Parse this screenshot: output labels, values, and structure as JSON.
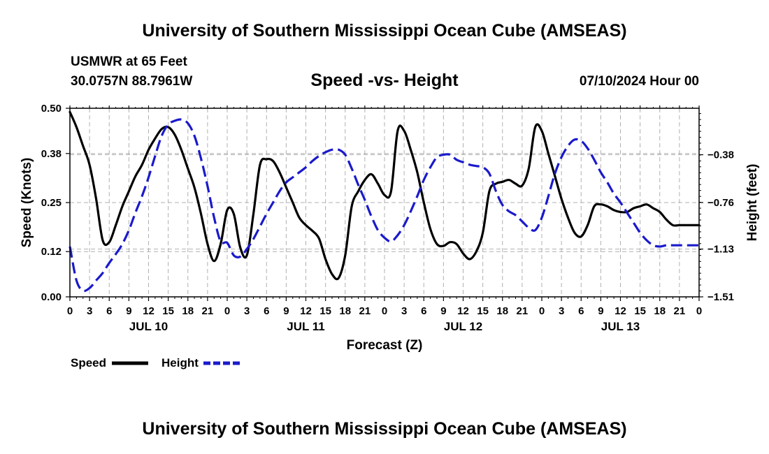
{
  "page": {
    "title": "University of Southern Mississippi Ocean Cube (AMSEAS)",
    "footer_title": "University of Southern Mississippi Ocean Cube (AMSEAS)",
    "station": "USMWR at 65 Feet",
    "coordinates": "30.0757N  88.7961W",
    "subtitle": "Speed -vs- Height",
    "datetime": "07/10/2024 Hour 00"
  },
  "legend": {
    "speed_label": "Speed",
    "height_label": "Height"
  },
  "colors": {
    "speed": "#000000",
    "height": "#1a1acc",
    "grid": "#b0b0b0"
  },
  "chart_data": {
    "type": "line",
    "xlabel": "Forecast (Z)",
    "ylabel": "Speed (Knots)",
    "y2label": "Height (feet)",
    "x_unit": "hours since 07/10/2024 00Z",
    "xlim": [
      0,
      96
    ],
    "ylim": [
      0.0,
      0.5
    ],
    "y2lim": [
      -1.51,
      -0.0106
    ],
    "x_ticks": [
      0,
      3,
      6,
      9,
      12,
      15,
      18,
      21,
      24,
      27,
      30,
      33,
      36,
      39,
      42,
      45,
      48,
      51,
      54,
      57,
      60,
      63,
      66,
      69,
      72,
      75,
      78,
      81,
      84,
      87,
      90,
      93,
      96
    ],
    "x_tick_labels": [
      "0",
      "3",
      "6",
      "9",
      "12",
      "15",
      "18",
      "21",
      "0",
      "3",
      "6",
      "9",
      "12",
      "15",
      "18",
      "21",
      "0",
      "3",
      "6",
      "9",
      "12",
      "15",
      "18",
      "21",
      "0",
      "3",
      "6",
      "9",
      "12",
      "15",
      "18",
      "21",
      "0"
    ],
    "day_labels": [
      {
        "x": 12,
        "label": "JUL 10"
      },
      {
        "x": 36,
        "label": "JUL 11"
      },
      {
        "x": 60,
        "label": "JUL 12"
      },
      {
        "x": 84,
        "label": "JUL 13"
      }
    ],
    "y_ticks": [
      0.0,
      0.12,
      0.25,
      0.38,
      0.5
    ],
    "y_tick_labels": [
      "0.00",
      "0.12",
      "0.25",
      "0.38",
      "0.50"
    ],
    "y2_ticks": [
      -1.51,
      -1.13,
      -0.76,
      -0.38
    ],
    "y2_tick_labels": [
      "−1.51",
      "−1.13",
      "−0.76",
      "−0.38"
    ],
    "grid": true,
    "legend_position": "bottom-left",
    "series": [
      {
        "name": "Speed",
        "axis": "left",
        "style": "solid",
        "x": [
          0,
          1,
          2,
          3,
          4,
          5,
          6,
          7,
          8,
          9,
          10,
          11,
          12,
          13,
          14,
          15,
          16,
          17,
          18,
          19,
          20,
          21,
          22,
          23,
          24,
          25,
          26,
          27,
          28,
          29,
          30,
          31,
          32,
          33,
          34,
          35,
          36,
          37,
          38,
          39,
          40,
          41,
          42,
          43,
          44,
          45,
          46,
          47,
          48,
          49,
          50,
          51,
          52,
          53,
          54,
          55,
          56,
          57,
          58,
          59,
          60,
          61,
          62,
          63,
          64,
          65,
          66,
          67,
          68,
          69,
          70,
          71,
          72,
          73,
          74,
          75,
          76,
          77,
          78,
          79,
          80,
          81,
          82,
          83,
          84,
          85,
          86,
          87,
          88,
          89,
          90,
          91,
          92,
          93,
          94,
          95,
          96
        ],
        "values": [
          0.49,
          0.45,
          0.4,
          0.35,
          0.26,
          0.15,
          0.145,
          0.19,
          0.24,
          0.28,
          0.32,
          0.35,
          0.39,
          0.42,
          0.445,
          0.45,
          0.43,
          0.39,
          0.34,
          0.29,
          0.22,
          0.14,
          0.095,
          0.14,
          0.23,
          0.22,
          0.13,
          0.11,
          0.22,
          0.35,
          0.365,
          0.36,
          0.33,
          0.29,
          0.25,
          0.21,
          0.19,
          0.175,
          0.155,
          0.1,
          0.06,
          0.05,
          0.11,
          0.24,
          0.28,
          0.31,
          0.325,
          0.3,
          0.27,
          0.28,
          0.44,
          0.44,
          0.39,
          0.33,
          0.25,
          0.18,
          0.14,
          0.135,
          0.145,
          0.14,
          0.115,
          0.1,
          0.12,
          0.17,
          0.28,
          0.3,
          0.305,
          0.31,
          0.3,
          0.295,
          0.34,
          0.45,
          0.44,
          0.38,
          0.32,
          0.26,
          0.21,
          0.17,
          0.16,
          0.19,
          0.24,
          0.245,
          0.24,
          0.23,
          0.225,
          0.225,
          0.235,
          0.24,
          0.245,
          0.235,
          0.225,
          0.205,
          0.19,
          0.19,
          0.19,
          0.19,
          0.19
        ]
      },
      {
        "name": "Height",
        "axis": "right",
        "style": "dashed",
        "x": [
          0,
          1,
          2,
          3,
          4,
          5,
          6,
          7,
          8,
          9,
          10,
          11,
          12,
          13,
          14,
          15,
          16,
          17,
          18,
          19,
          20,
          21,
          22,
          23,
          24,
          25,
          26,
          27,
          28,
          29,
          30,
          31,
          32,
          33,
          34,
          35,
          36,
          37,
          38,
          39,
          40,
          41,
          42,
          43,
          44,
          45,
          46,
          47,
          48,
          49,
          50,
          51,
          52,
          53,
          54,
          55,
          56,
          57,
          58,
          59,
          60,
          61,
          62,
          63,
          64,
          65,
          66,
          67,
          68,
          69,
          70,
          71,
          72,
          73,
          74,
          75,
          76,
          77,
          78,
          79,
          80,
          81,
          82,
          83,
          84,
          85,
          86,
          87,
          88,
          89,
          90,
          91,
          92,
          93,
          94,
          95,
          96
        ],
        "values": [
          -1.11,
          -1.38,
          -1.46,
          -1.44,
          -1.38,
          -1.32,
          -1.24,
          -1.17,
          -1.09,
          -0.98,
          -0.84,
          -0.71,
          -0.56,
          -0.39,
          -0.23,
          -0.14,
          -0.11,
          -0.1,
          -0.13,
          -0.23,
          -0.41,
          -0.63,
          -0.88,
          -1.07,
          -1.08,
          -1.18,
          -1.19,
          -1.13,
          -1.05,
          -0.95,
          -0.85,
          -0.76,
          -0.67,
          -0.6,
          -0.56,
          -0.52,
          -0.48,
          -0.43,
          -0.39,
          -0.36,
          -0.34,
          -0.34,
          -0.38,
          -0.49,
          -0.62,
          -0.74,
          -0.87,
          -0.98,
          -1.04,
          -1.07,
          -1.02,
          -0.94,
          -0.83,
          -0.71,
          -0.58,
          -0.48,
          -0.4,
          -0.38,
          -0.38,
          -0.42,
          -0.44,
          -0.46,
          -0.47,
          -0.48,
          -0.53,
          -0.67,
          -0.78,
          -0.83,
          -0.86,
          -0.91,
          -0.96,
          -0.98,
          -0.88,
          -0.71,
          -0.53,
          -0.4,
          -0.31,
          -0.26,
          -0.27,
          -0.33,
          -0.42,
          -0.52,
          -0.6,
          -0.69,
          -0.76,
          -0.84,
          -0.92,
          -1.0,
          -1.06,
          -1.1,
          -1.11,
          -1.1,
          -1.1,
          -1.1,
          -1.1,
          -1.1,
          -1.1
        ]
      }
    ]
  }
}
